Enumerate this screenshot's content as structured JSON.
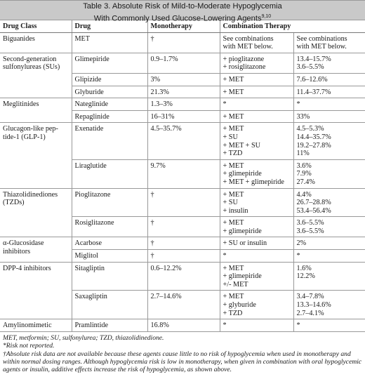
{
  "title_line1": "Table 3. Absolute Risk of Mild-to-Moderate Hypoglycemia",
  "title_line2": "With Commonly Used Glucose-Lowering Agents",
  "title_ref": "9,10",
  "headers": [
    "Drug Class",
    "Drug",
    "Monotherapy",
    "Combination Therapy"
  ],
  "rows": [
    {
      "class": "Biguanides",
      "drug": "MET",
      "mono": "†",
      "combo": "See combinations\nwith MET below.",
      "risk": "See combinations\nwith MET below."
    },
    {
      "class": "Second-generation\nsulfonylureas (SUs)",
      "drug": "Glimepiride",
      "mono": "0.9–1.7%",
      "combo": "+ pioglitazone\n+ rosiglitazone",
      "risk": "13.4–15.7%\n3.6–5.5%"
    },
    {
      "drug": "Glipizide",
      "mono": "3%",
      "combo": "+ MET",
      "risk": "7.6–12.6%"
    },
    {
      "drug": "Glyburide",
      "mono": "21.3%",
      "combo": "+ MET",
      "risk": "11.4–37.7%"
    },
    {
      "class": "Meglitinides",
      "drug": "Nateglinide",
      "mono": "1.3–3%",
      "combo": "*",
      "risk": "*"
    },
    {
      "drug": "Repaglinide",
      "mono": "16–31%",
      "combo": "+ MET",
      "risk": "33%"
    },
    {
      "class": "Glucagon-like pep-\ntide-1 (GLP-1)",
      "drug": "Exenatide",
      "mono": "4.5–35.7%",
      "combo": "+ MET\n+ SU\n+ MET + SU\n+ TZD",
      "risk": "4.5–5.3%\n14.4–35.7%\n19.2–27.8%\n11%"
    },
    {
      "drug": "Liraglutide",
      "mono": "9.7%",
      "combo": "+ MET\n+ glimepiride\n+ MET + glimepiride",
      "risk": "3.6%\n7.9%\n27.4%"
    },
    {
      "class": "Thiazolidinediones\n(TZDs)",
      "drug": "Pioglitazone",
      "mono": "†",
      "combo": "+ MET\n+ SU\n+ insulin",
      "risk": "4.4%\n26.7–28.8%\n53.4–56.4%"
    },
    {
      "drug": "Rosiglitazone",
      "mono": "†",
      "combo": "+ MET\n+ glimepiride",
      "risk": "3.6–5.5%\n3.6–5.5%"
    },
    {
      "class": "α-Glucosidase\ninhibitors",
      "drug": "Acarbose",
      "mono": "†",
      "combo": "+ SU or insulin",
      "risk": "2%"
    },
    {
      "drug": "Miglitol",
      "mono": "†",
      "combo": "*",
      "risk": "*"
    },
    {
      "class": "DPP-4 inhibitors",
      "drug": "Sitagliptin",
      "mono": "0.6–12.2%",
      "combo": "+ MET\n+ glimepiride\n+/- MET",
      "risk": "1.6%\n12.2%"
    },
    {
      "drug": "Saxagliptin",
      "mono": "2.7–14.6%",
      "combo": "+ MET\n+ glyburide\n+ TZD",
      "risk": "3.4–7.8%\n13.3–14.6%\n2.7–4.1%"
    },
    {
      "class": "Amylinomimetic",
      "drug": "Pramlintide",
      "mono": "16.8%",
      "combo": "*",
      "risk": "*"
    }
  ],
  "footnotes": {
    "abbrev": "MET, metformin; SU, sulfonylurea; TZD, thiazolidinedione.",
    "star": "*Risk not reported.",
    "dagger": "†Absolute risk data are not available because these agents cause little to no risk of hypoglycemia when used in monotherapy and within normal dosing ranges. Although hypoglycemia risk is low in monotherapy, when given in combination with oral hypoglycemic agents or insulin, additive effects increase the risk of hypoglycemia, as shown above."
  }
}
